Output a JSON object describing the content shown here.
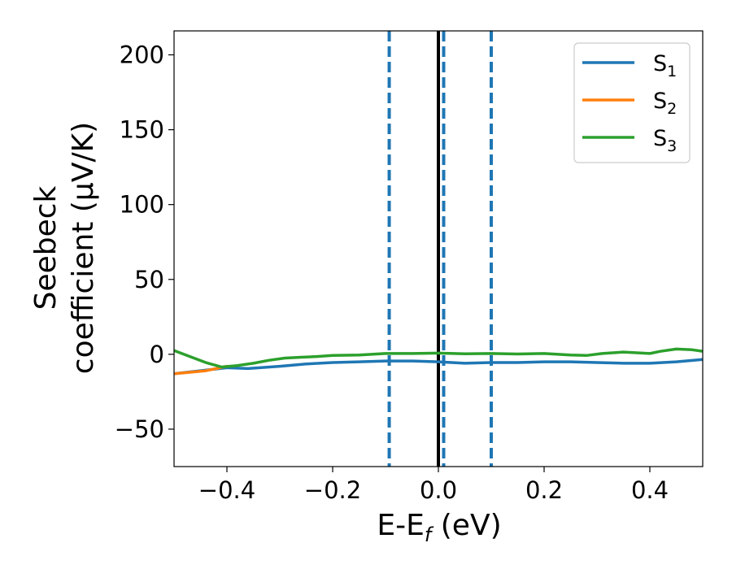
{
  "chart_data": {
    "type": "line",
    "xlabel_main": "E-E",
    "xlabel_sub": "f",
    "xlabel_unit": " (eV)",
    "ylabel_line1": "Seebeck",
    "ylabel_line2": "coefficient  (μV/K)",
    "xlim": [
      -0.5,
      0.5
    ],
    "ylim": [
      -75,
      216
    ],
    "xticks": [
      -0.4,
      -0.2,
      0.0,
      0.2,
      0.4
    ],
    "xtick_labels": [
      "−0.4",
      "−0.2",
      "0.0",
      "0.2",
      "0.4"
    ],
    "yticks": [
      -50,
      0,
      50,
      100,
      150,
      200
    ],
    "ytick_labels": [
      "−50",
      "0",
      "50",
      "100",
      "150",
      "200"
    ],
    "grid": false,
    "legend_position": "top-right",
    "vertical_lines": [
      {
        "x": -0.093,
        "style": "dashed",
        "color": "#1f77b4"
      },
      {
        "x": 0.0,
        "style": "solid",
        "color": "#000000"
      },
      {
        "x": 0.01,
        "style": "dashed",
        "color": "#1f77b4"
      },
      {
        "x": 0.1,
        "style": "dashed",
        "color": "#1f77b4"
      }
    ],
    "series": [
      {
        "name": "S",
        "subscript": "1",
        "color": "#1f77b4",
        "x": [
          -0.5,
          -0.45,
          -0.4,
          -0.36,
          -0.3,
          -0.25,
          -0.2,
          -0.15,
          -0.1,
          -0.05,
          0.0,
          0.05,
          0.1,
          0.15,
          0.2,
          0.25,
          0.3,
          0.35,
          0.4,
          0.45,
          0.5
        ],
        "y": [
          -13,
          -11,
          -9,
          -9.5,
          -8,
          -6.5,
          -5.5,
          -5,
          -4.5,
          -4.5,
          -5,
          -6,
          -5.5,
          -5.5,
          -5,
          -5,
          -5.5,
          -6,
          -6,
          -5,
          -3.5
        ]
      },
      {
        "name": "S",
        "subscript": "2",
        "color": "#ff7f0e",
        "x": [
          -0.5,
          -0.47,
          -0.44,
          -0.42,
          -0.4
        ],
        "y": [
          -13,
          -12,
          -11,
          -9.5,
          -8
        ]
      },
      {
        "name": "S",
        "subscript": "3",
        "color": "#2ca02c",
        "x": [
          -0.5,
          -0.47,
          -0.44,
          -0.41,
          -0.38,
          -0.35,
          -0.32,
          -0.29,
          -0.26,
          -0.23,
          -0.2,
          -0.15,
          -0.1,
          -0.05,
          0.0,
          0.05,
          0.1,
          0.15,
          0.2,
          0.25,
          0.28,
          0.31,
          0.35,
          0.4,
          0.42,
          0.45,
          0.48,
          0.5
        ],
        "y": [
          2.5,
          -1.5,
          -5.5,
          -8.5,
          -7.5,
          -6,
          -4,
          -2.5,
          -2,
          -1.5,
          -0.8,
          -0.5,
          0.5,
          0.5,
          0.8,
          0.3,
          0.5,
          0.2,
          0.5,
          -0.5,
          -0.8,
          0.5,
          1.5,
          0.5,
          2,
          3.5,
          3,
          2
        ]
      }
    ]
  }
}
